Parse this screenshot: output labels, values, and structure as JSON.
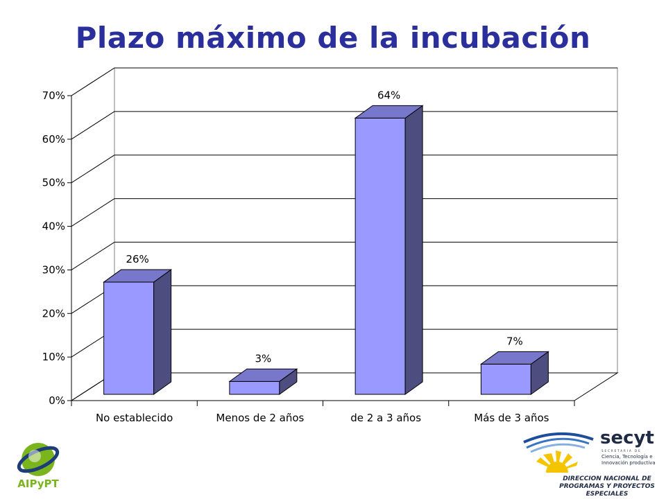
{
  "slide": {
    "title": "Plazo máximo de la incubación"
  },
  "logos": {
    "left_text": "AIPyPT",
    "right_brand": "secyt",
    "right_small_caps": "SECRETARIA DE",
    "right_line1": "Ciencia, Tecnología e",
    "right_line2": "Innovación productiva",
    "direction_line1": "DIRECCION NACIONAL DE",
    "direction_line2": "PROGRAMAS Y PROYECTOS ESPECIALES"
  },
  "chart_data": {
    "type": "bar",
    "title": "Plazo máximo de la incubación",
    "categories": [
      "No establecido",
      "Menos de 2 años",
      "de 2 a 3 años",
      "Más de 3 años"
    ],
    "values": [
      26,
      3,
      64,
      7
    ],
    "value_labels": [
      "26%",
      "3%",
      "64%",
      "7%"
    ],
    "ylim": [
      0,
      70
    ],
    "yticks": [
      0,
      10,
      20,
      30,
      40,
      50,
      60,
      70
    ],
    "ytick_labels": [
      "0%",
      "10%",
      "20%",
      "30%",
      "40%",
      "50%",
      "60%",
      "70%"
    ],
    "grid": true,
    "style": "3d",
    "colors": {
      "front": "#9999ff",
      "side": "#4d4d80",
      "top": "#7777cc",
      "grid": "#000000",
      "title": "#2b2f9b"
    }
  }
}
